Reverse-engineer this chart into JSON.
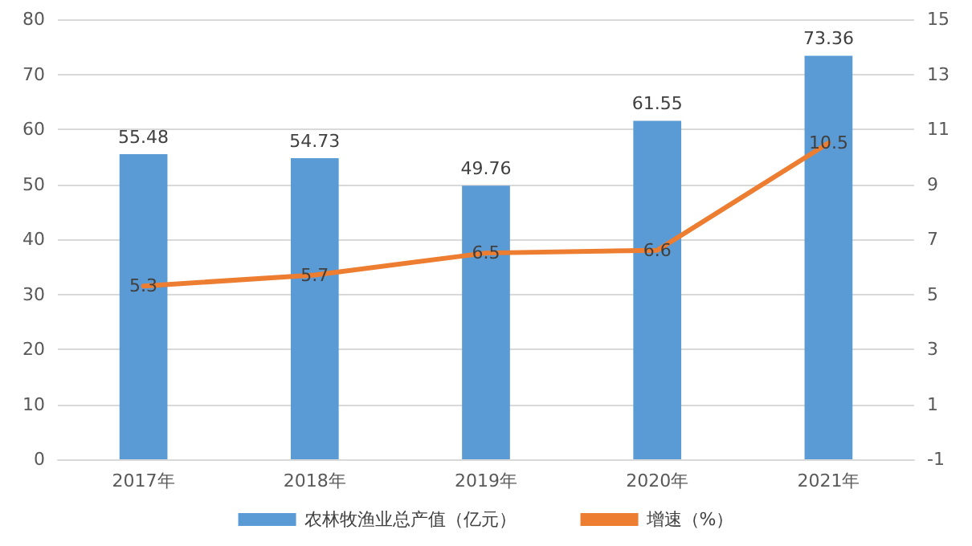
{
  "chart_data": {
    "type": "bar",
    "categories": [
      "2017年",
      "2018年",
      "2019年",
      "2020年",
      "2021年"
    ],
    "series": [
      {
        "name": "农林牧渔业总产值（亿元）",
        "color": "#5b9bd5",
        "values": [
          55.48,
          54.73,
          49.76,
          61.55,
          73.36
        ]
      },
      {
        "name": "增速（%）",
        "type": "line",
        "axis": "y2",
        "color": "#ed7d31",
        "values": [
          5.3,
          5.7,
          6.5,
          6.6,
          10.5
        ]
      }
    ],
    "ylim": [
      0,
      80
    ],
    "yticks": [
      0,
      10,
      20,
      30,
      40,
      50,
      60,
      70,
      80
    ],
    "y2lim": [
      -1,
      15
    ],
    "y2ticks": [
      -1,
      1,
      3,
      5,
      7,
      9,
      11,
      13,
      15
    ],
    "data_labels": true,
    "grid": "y",
    "legend": "bottom",
    "marker": "none",
    "line_style": "solid"
  }
}
